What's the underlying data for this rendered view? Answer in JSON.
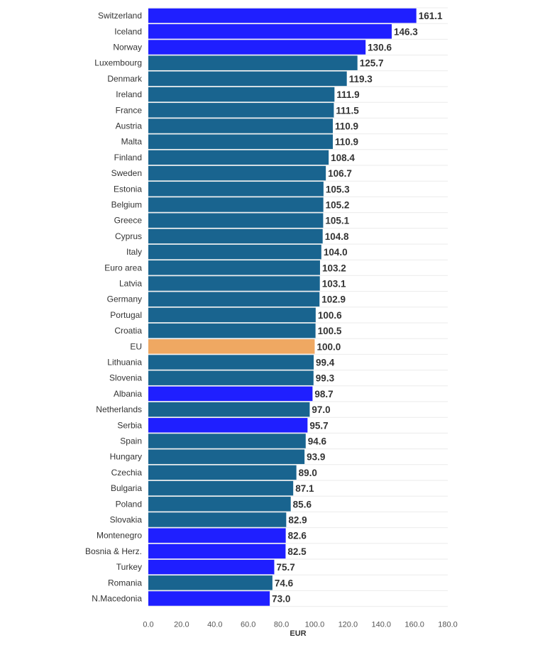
{
  "chart_data": {
    "type": "bar",
    "orientation": "horizontal",
    "title": "",
    "xlabel": "EUR",
    "ylabel": "",
    "xlim": [
      0,
      180
    ],
    "ticks": [
      "0.0",
      "20.0",
      "40.0",
      "60.0",
      "80.0",
      "100.0",
      "120.0",
      "140.0",
      "160.0",
      "180.0"
    ],
    "grid": true,
    "colors": {
      "eu_member": "#19648f",
      "non_eu": "#1f1fff",
      "eu_average": "#efa862"
    },
    "categories": [
      "Switzerland",
      "Iceland",
      "Norway",
      "Luxembourg",
      "Denmark",
      "Ireland",
      "France",
      "Austria",
      "Malta",
      "Finland",
      "Sweden",
      "Estonia",
      "Belgium",
      "Greece",
      "Cyprus",
      "Italy",
      "Euro area",
      "Latvia",
      "Germany",
      "Portugal",
      "Croatia",
      "EU",
      "Lithuania",
      "Slovenia",
      "Albania",
      "Netherlands",
      "Serbia",
      "Spain",
      "Hungary",
      "Czechia",
      "Bulgaria",
      "Poland",
      "Slovakia",
      "Montenegro",
      "Bosnia & Herz.",
      "Turkey",
      "Romania",
      "N.Macedonia"
    ],
    "values": [
      161.1,
      146.3,
      130.6,
      125.7,
      119.3,
      111.9,
      111.5,
      110.9,
      110.9,
      108.4,
      106.7,
      105.3,
      105.2,
      105.1,
      104.8,
      104.0,
      103.2,
      103.1,
      102.9,
      100.6,
      100.5,
      100.0,
      99.4,
      99.3,
      98.7,
      97.0,
      95.7,
      94.6,
      93.9,
      89.0,
      87.1,
      85.6,
      82.9,
      82.6,
      82.5,
      75.7,
      74.6,
      73.0
    ],
    "value_labels": [
      "161.1",
      "146.3",
      "130.6",
      "125.7",
      "119.3",
      "111.9",
      "111.5",
      "110.9",
      "110.9",
      "108.4",
      "106.7",
      "105.3",
      "105.2",
      "105.1",
      "104.8",
      "104.0",
      "103.2",
      "103.1",
      "102.9",
      "100.6",
      "100.5",
      "100.0",
      "99.4",
      "99.3",
      "98.7",
      "97.0",
      "95.7",
      "94.6",
      "93.9",
      "89.0",
      "87.1",
      "85.6",
      "82.9",
      "82.6",
      "82.5",
      "75.7",
      "74.6",
      "73.0"
    ],
    "groups": [
      "non_eu",
      "non_eu",
      "non_eu",
      "eu_member",
      "eu_member",
      "eu_member",
      "eu_member",
      "eu_member",
      "eu_member",
      "eu_member",
      "eu_member",
      "eu_member",
      "eu_member",
      "eu_member",
      "eu_member",
      "eu_member",
      "eu_member",
      "eu_member",
      "eu_member",
      "eu_member",
      "eu_member",
      "eu_average",
      "eu_member",
      "eu_member",
      "non_eu",
      "eu_member",
      "non_eu",
      "eu_member",
      "eu_member",
      "eu_member",
      "eu_member",
      "eu_member",
      "eu_member",
      "non_eu",
      "non_eu",
      "non_eu",
      "eu_member",
      "non_eu"
    ]
  }
}
